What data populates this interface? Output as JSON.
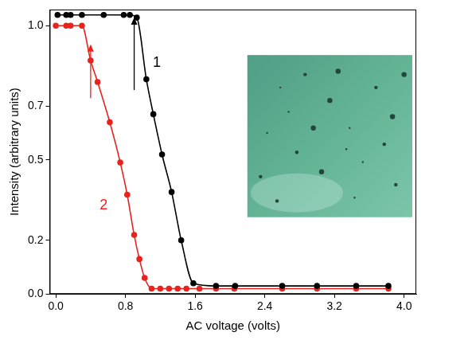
{
  "chart_data": {
    "type": "line",
    "x_label": "AC voltage (volts)",
    "y_label": "Intensity (arbitrary units)",
    "xlim": [
      -0.07,
      4.14
    ],
    "ylim": [
      0,
      1.06
    ],
    "xticks": [
      {
        "value": 0,
        "label": "0.0"
      },
      {
        "value": 0.8,
        "label": "0.8"
      },
      {
        "value": 1.6,
        "label": "1.6"
      },
      {
        "value": 2.4,
        "label": "2.4"
      },
      {
        "value": 3.2,
        "label": "3.2"
      },
      {
        "value": 4,
        "label": "4.0"
      }
    ],
    "yticks": [
      {
        "value": 0,
        "label": "0.0"
      },
      {
        "value": 0.2,
        "label": "0.2"
      },
      {
        "value": 0.5,
        "label": "0.5"
      },
      {
        "value": 0.7,
        "label": "0.7"
      },
      {
        "value": 1,
        "label": "1.0"
      }
    ],
    "grid": false,
    "series": [
      {
        "color": "#000000",
        "marker": "circle",
        "line_style": "solid",
        "x": [
          0.02,
          0.12,
          0.17,
          0.3,
          0.55,
          0.78,
          0.85,
          0.93,
          1.04,
          1.12,
          1.22,
          1.33,
          1.44,
          1.58,
          1.84,
          2.06,
          2.6,
          3.0,
          3.45,
          3.82
        ],
        "values": [
          1.04,
          1.04,
          1.04,
          1.04,
          1.04,
          1.04,
          1.04,
          1.03,
          0.8,
          0.67,
          0.52,
          0.38,
          0.2,
          0.04,
          0.03,
          0.03,
          0.03,
          0.03,
          0.03,
          0.03
        ]
      },
      {
        "color": "#e8231f",
        "marker": "circle",
        "line_style": "solid",
        "x": [
          0.0,
          0.12,
          0.17,
          0.3,
          0.4,
          0.48,
          0.62,
          0.74,
          0.82,
          0.9,
          0.96,
          1.02,
          1.1,
          1.2,
          1.3,
          1.4,
          1.5,
          1.65,
          1.84,
          2.05,
          2.6,
          3.0,
          3.45,
          3.82
        ],
        "values": [
          1.0,
          1.0,
          1.0,
          1.0,
          0.87,
          0.79,
          0.64,
          0.49,
          0.37,
          0.22,
          0.13,
          0.06,
          0.02,
          0.02,
          0.02,
          0.02,
          0.02,
          0.02,
          0.02,
          0.02,
          0.02,
          0.02,
          0.02,
          0.02
        ]
      }
    ],
    "annotations": [
      {
        "text": "1",
        "x": 1.16,
        "y": 0.86,
        "color": "#000000"
      },
      {
        "text": "2",
        "x": 0.55,
        "y": 0.33,
        "color": "#e8231f"
      }
    ],
    "arrows": [
      {
        "x": 0.4,
        "y_from": 0.73,
        "y_to": 0.93,
        "color": "#e8231f"
      },
      {
        "x": 0.9,
        "y_from": 0.76,
        "y_to": 1.03,
        "color": "#000000"
      }
    ]
  }
}
